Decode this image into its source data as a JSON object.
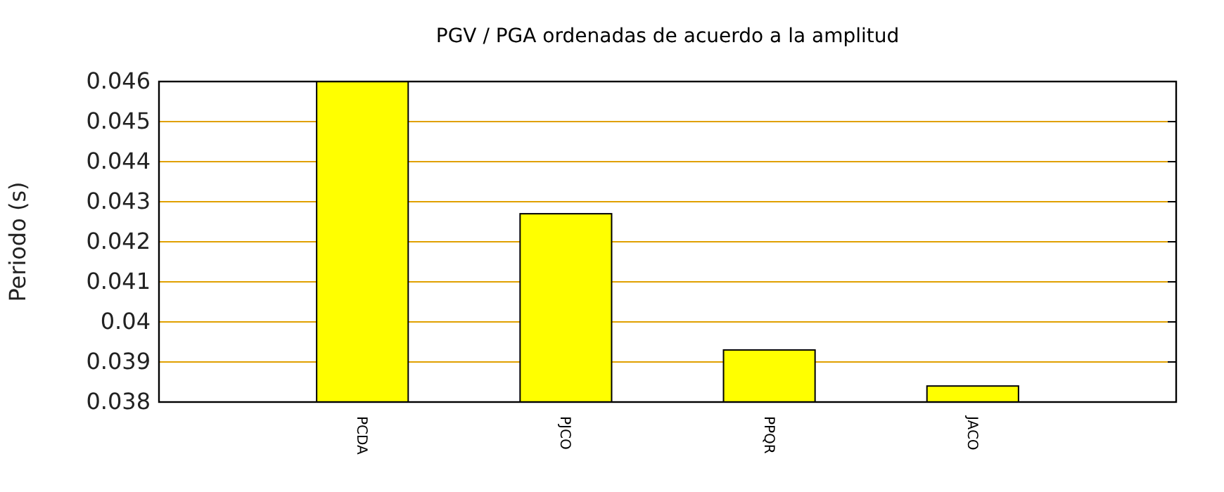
{
  "chart_data": {
    "type": "bar",
    "title": "PGV / PGA ordenadas de acuerdo a la amplitud",
    "ylabel": "Periodo (s)",
    "categories": [
      "PCDA",
      "PJCO",
      "PPQR",
      "JACO"
    ],
    "values": [
      0.046,
      0.0427,
      0.0393,
      0.0384
    ],
    "color": "#ffff00",
    "ylim": [
      0.038,
      0.046
    ],
    "yticks": [
      0.038,
      0.039,
      0.04,
      0.041,
      0.042,
      0.043,
      0.044,
      0.045,
      0.046
    ],
    "grid": "y"
  }
}
